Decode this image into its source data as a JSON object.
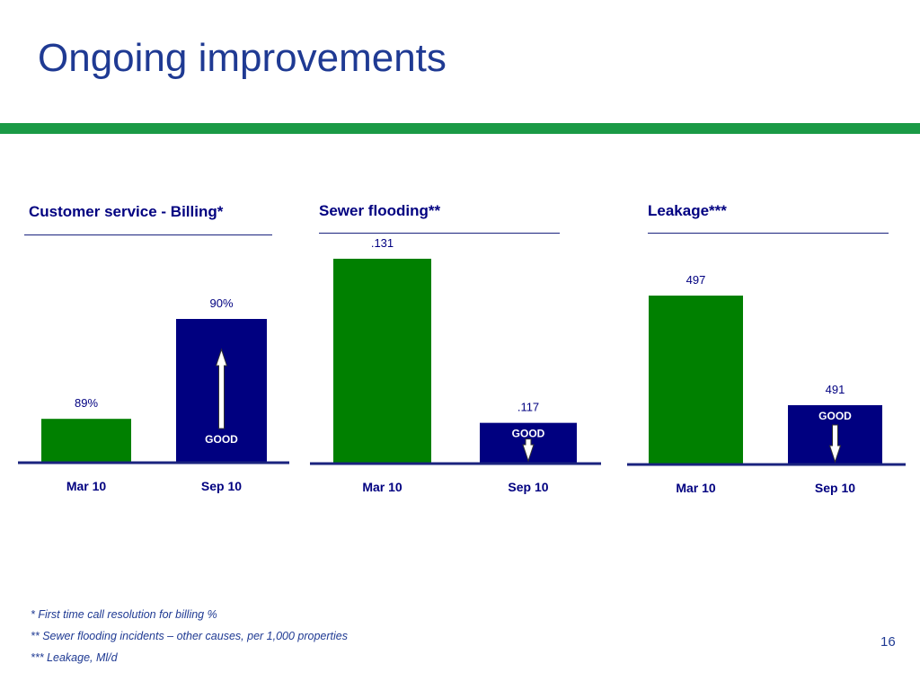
{
  "slide": {
    "title": "Ongoing improvements",
    "page_number": "16",
    "footnotes": [
      "*    First time call resolution for billing %",
      "**  Sewer flooding incidents – other causes, per 1,000 properties",
      "*** Leakage, Ml/d"
    ]
  },
  "colors": {
    "title": "#1f3a93",
    "accent_green": "#1a9a46",
    "bar_green": "#008000",
    "bar_navy": "#000080",
    "axis": "#1a237e"
  },
  "chart_data": [
    {
      "type": "bar",
      "title": "Customer service - Billing*",
      "categories": [
        "Mar 10",
        "Sep 10"
      ],
      "values": [
        89,
        90
      ],
      "value_labels": [
        "89%",
        "90%"
      ],
      "bar_colors": [
        "#008000",
        "#000080"
      ],
      "ylim": [
        88.57,
        90.18
      ],
      "annotation": {
        "text": "GOOD",
        "direction": "up",
        "bar_index": 1
      }
    },
    {
      "type": "bar",
      "title": "Sewer flooding**",
      "categories": [
        "Mar 10",
        "Sep 10"
      ],
      "values": [
        0.131,
        0.117
      ],
      "value_labels": [
        ".131",
        ".117"
      ],
      "bar_colors": [
        "#008000",
        "#000080"
      ],
      "ylim": [
        0.1136,
        0.131
      ],
      "annotation": {
        "text": "GOOD",
        "direction": "down",
        "bar_index": 1
      }
    },
    {
      "type": "bar",
      "title": "Leakage***",
      "categories": [
        "Mar 10",
        "Sep 10"
      ],
      "values": [
        497,
        491
      ],
      "value_labels": [
        "497",
        "491"
      ],
      "bar_colors": [
        "#008000",
        "#000080"
      ],
      "ylim": [
        487.8,
        497.0
      ],
      "annotation": {
        "text": "GOOD",
        "direction": "down",
        "bar_index": 1
      }
    }
  ]
}
